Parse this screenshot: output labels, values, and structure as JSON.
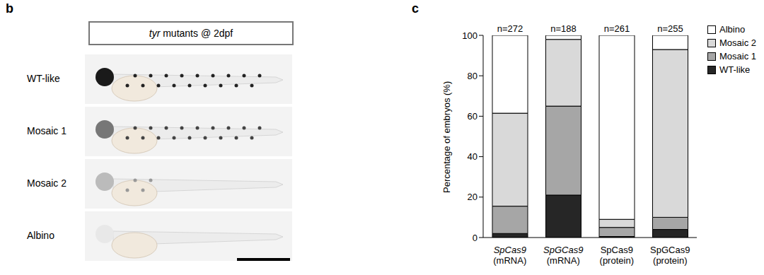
{
  "panel_b": {
    "panel_label": "b",
    "title": "tyr mutants @ 2dpf",
    "rows": [
      "WT-like",
      "Mosaic 1",
      "Mosaic 2",
      "Albino"
    ]
  },
  "chart_data": {
    "type": "bar",
    "panel_label": "c",
    "stacked": true,
    "categories": [
      "SpCas9 (mRNA)",
      "SpGCas9 (mRNA)",
      "SpCas9 (protein)",
      "SpGCas9 (protein)"
    ],
    "annotations": [
      "n=272",
      "n=188",
      "n=261",
      "n=255"
    ],
    "y_label": "Percentage of embryos (%)",
    "ylim": [
      0,
      100
    ],
    "yticks": [
      0,
      20,
      40,
      60,
      80,
      100
    ],
    "grid": false,
    "legend": "upper right",
    "series": [
      {
        "name": "WT-like",
        "color": "#262626",
        "values": [
          2,
          21,
          0.5,
          4
        ]
      },
      {
        "name": "Mosaic 1",
        "color": "#a6a6a6",
        "values": [
          13.5,
          44,
          4.5,
          6
        ]
      },
      {
        "name": "Mosaic 2",
        "color": "#d9d9d9",
        "values": [
          46,
          33,
          4,
          83
        ]
      },
      {
        "name": "Albino",
        "color": "#ffffff",
        "values": [
          38.5,
          2,
          91,
          7
        ]
      }
    ]
  }
}
